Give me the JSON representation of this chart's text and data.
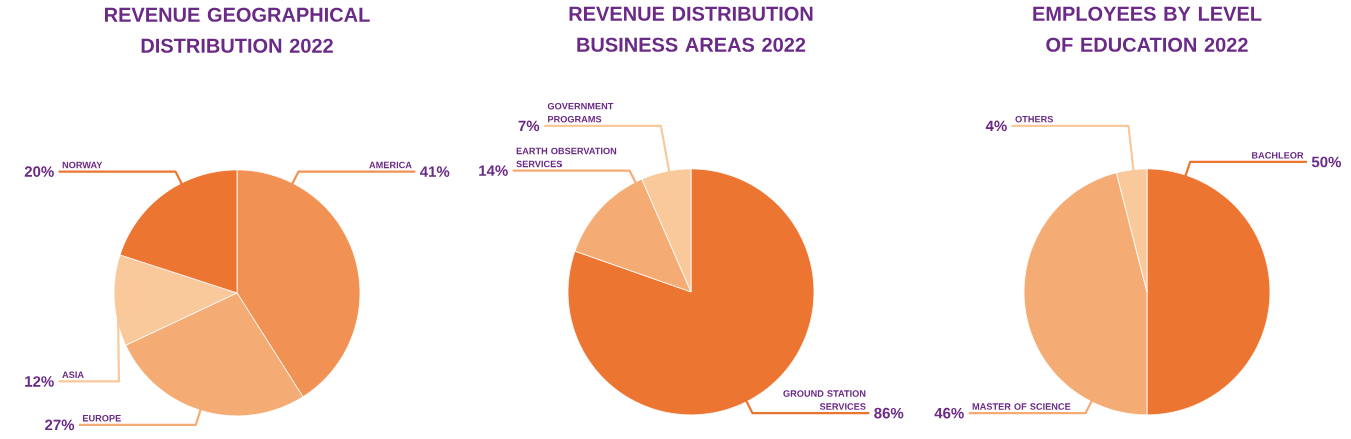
{
  "chart_data": [
    {
      "type": "pie",
      "title": "REVENUE GEOGRAPHICAL DISTRIBUTION 2022",
      "categories": [
        "AMERICA",
        "EUROPE",
        "ASIA",
        "NORWAY"
      ],
      "values": [
        41,
        27,
        12,
        20
      ],
      "value_labels": [
        "41%",
        "27%",
        "12%",
        "20%"
      ],
      "colors": [
        "#f19254",
        "#f5ac74",
        "#f9c89b",
        "#ed7532"
      ]
    },
    {
      "type": "pie",
      "title": "REVENUE DISTRIBUTION BUSINESS AREAS 2022",
      "categories": [
        "GROUND STATION SERVICES",
        "EARTH OBSERVATION SERVICES",
        "GOVERNMENT PROGRAMS"
      ],
      "values": [
        86,
        14,
        7
      ],
      "value_labels": [
        "86%",
        "14%",
        "7%"
      ],
      "colors": [
        "#ed7532",
        "#f5ac74",
        "#f9c89b"
      ]
    },
    {
      "type": "pie",
      "title": "EMPLOYEES BY LEVEL OF EDUCATION 2022",
      "categories": [
        "BACHLEOR",
        "MASTER OF SCIENCE",
        "OTHERS"
      ],
      "values": [
        50,
        46,
        4
      ],
      "value_labels": [
        "50%",
        "46%",
        "4%"
      ],
      "colors": [
        "#ed7532",
        "#f5ac74",
        "#f9c89b"
      ]
    }
  ]
}
